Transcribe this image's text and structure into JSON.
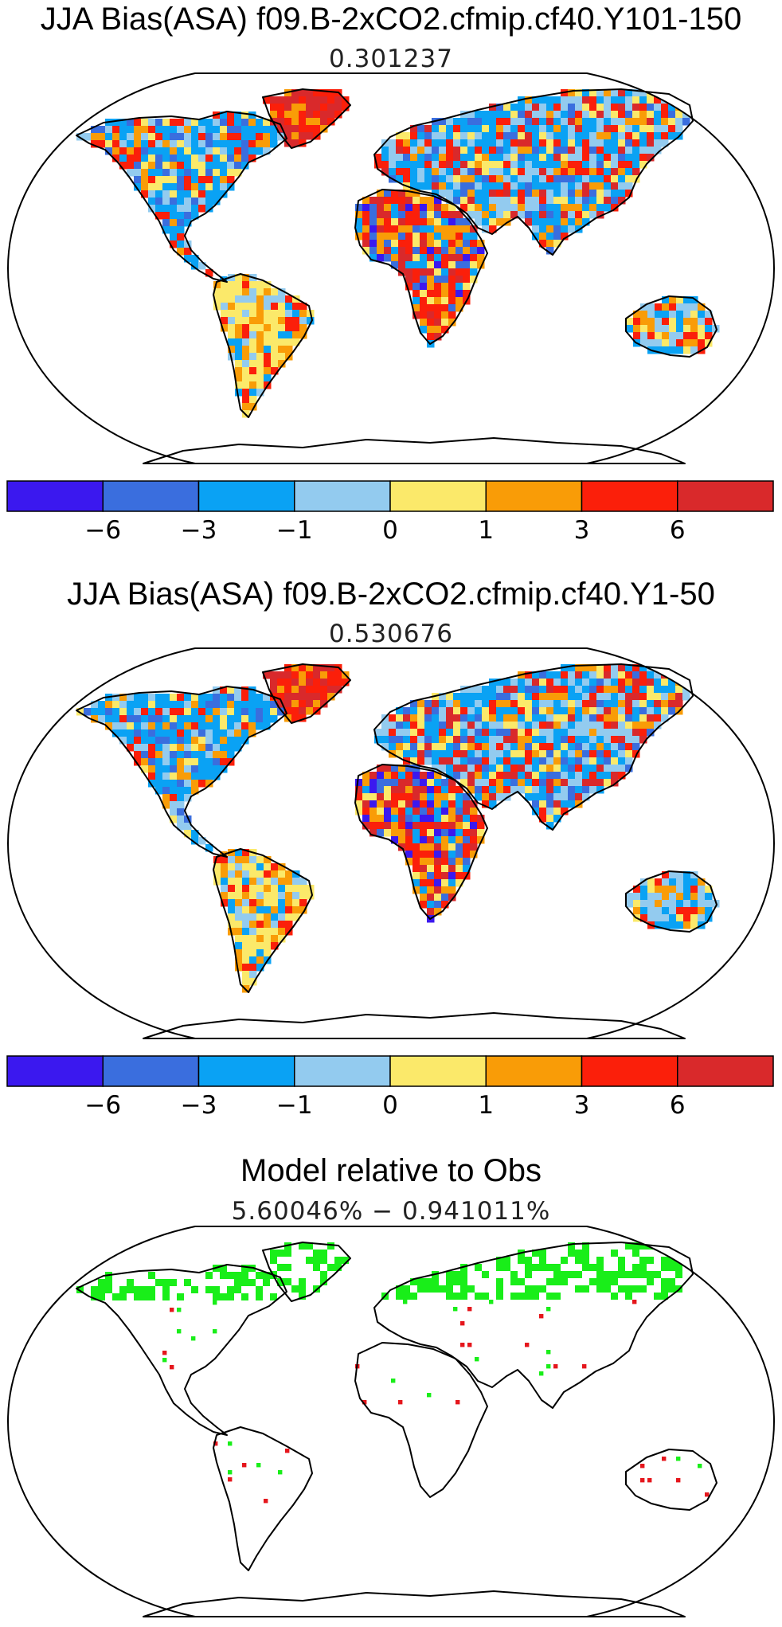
{
  "panels": [
    {
      "title": "JJA Bias(ASA) f09.B-2xCO2.cfmip.cf40.Y101-150",
      "subtitle": "0.301237"
    },
    {
      "title": "JJA Bias(ASA) f09.B-2xCO2.cfmip.cf40.Y1-50",
      "subtitle": "0.530676"
    },
    {
      "title": "Model relative to Obs",
      "subtitle": "5.60046% − 0.941011%"
    }
  ],
  "colorbar": {
    "colors": [
      "#3b18ef",
      "#3a6ede",
      "#0aa2f4",
      "#93cbef",
      "#fbe96a",
      "#f99c07",
      "#fb1f0a",
      "#d9292b"
    ],
    "tick_labels": [
      "−6",
      "−3",
      "−1",
      "0",
      "1",
      "3",
      "6"
    ]
  },
  "relative_colors": {
    "better": "#19ee19",
    "worse": "#e5161c"
  }
}
